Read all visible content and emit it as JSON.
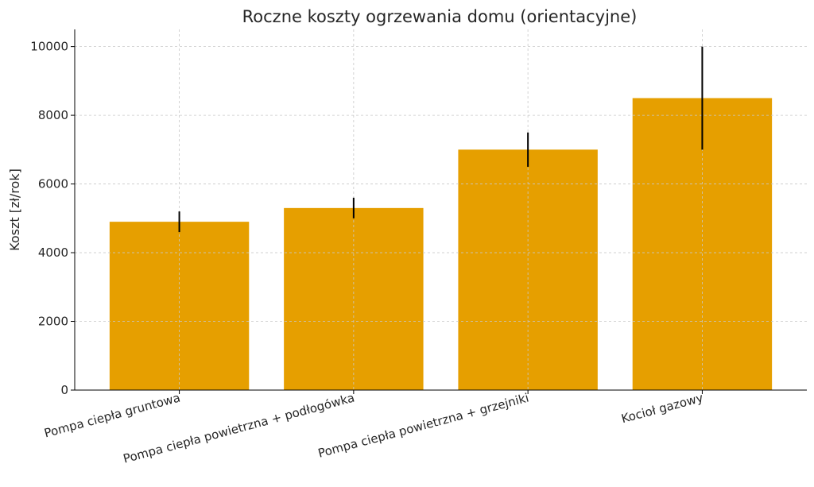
{
  "chart_data": {
    "type": "bar",
    "title": "Roczne koszty ogrzewania domu (orientacyjne)",
    "xlabel": "",
    "ylabel": "Koszt [zł/rok]",
    "categories": [
      "Pompa ciepła gruntowa",
      "Pompa ciepła powietrzna + podłogówka",
      "Pompa ciepła powietrzna + grzejniki",
      "Kocioł gazowy"
    ],
    "values": [
      4900,
      5300,
      7000,
      8500
    ],
    "error_low": [
      4600,
      5000,
      6500,
      7000
    ],
    "error_high": [
      5200,
      5600,
      7500,
      10000
    ],
    "ylim": [
      0,
      10500
    ],
    "yticks": [
      0,
      2000,
      4000,
      6000,
      8000,
      10000
    ],
    "grid": true,
    "bar_color": "#E69F00",
    "errorbar_color": "#000000"
  }
}
